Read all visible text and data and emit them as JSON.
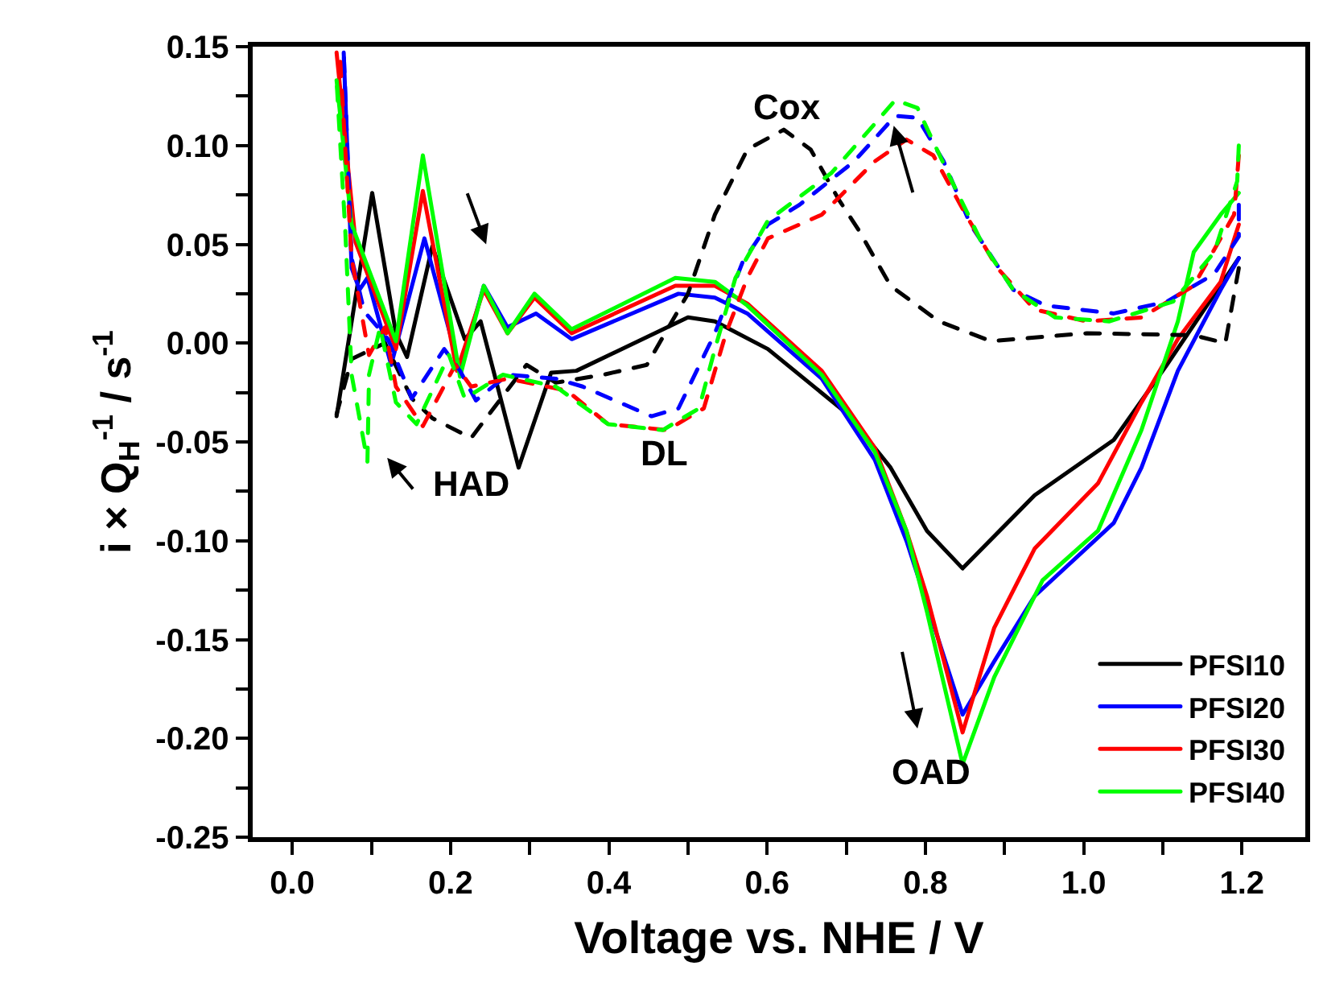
{
  "chart_data": {
    "type": "line",
    "xlabel": "Voltage vs. NHE / V",
    "ylabel": "i × Q$_{H}$$^{-1}$ / s$^{-1}$",
    "xlim": [
      -0.05,
      1.28
    ],
    "ylim": [
      -0.25,
      0.15
    ],
    "xticks": [
      {
        "value": 0.0,
        "label": "0.0"
      },
      {
        "value": 0.1,
        "label": null
      },
      {
        "value": 0.2,
        "label": "0.2"
      },
      {
        "value": 0.3,
        "label": null
      },
      {
        "value": 0.4,
        "label": "0.4"
      },
      {
        "value": 0.5,
        "label": null
      },
      {
        "value": 0.6,
        "label": "0.6"
      },
      {
        "value": 0.7,
        "label": null
      },
      {
        "value": 0.8,
        "label": "0.8"
      },
      {
        "value": 0.9,
        "label": null
      },
      {
        "value": 1.0,
        "label": "1.0"
      },
      {
        "value": 1.1,
        "label": null
      },
      {
        "value": 1.2,
        "label": "1.2"
      }
    ],
    "yticks": [
      {
        "value": 0.15,
        "label": "0.15"
      },
      {
        "value": 0.125,
        "label": null
      },
      {
        "value": 0.1,
        "label": "0.10"
      },
      {
        "value": 0.075,
        "label": null
      },
      {
        "value": 0.05,
        "label": "0.05"
      },
      {
        "value": 0.025,
        "label": null
      },
      {
        "value": 0.0,
        "label": "0.00"
      },
      {
        "value": -0.025,
        "label": null
      },
      {
        "value": -0.05,
        "label": "-0.05"
      },
      {
        "value": -0.075,
        "label": null
      },
      {
        "value": -0.1,
        "label": "-0.10"
      },
      {
        "value": -0.125,
        "label": null
      },
      {
        "value": -0.15,
        "label": "-0.15"
      },
      {
        "value": -0.175,
        "label": null
      },
      {
        "value": -0.2,
        "label": "-0.20"
      },
      {
        "value": -0.225,
        "label": null
      },
      {
        "value": -0.25,
        "label": "-0.25"
      }
    ],
    "legend": "bottom right",
    "marker": "none",
    "annotations": [
      "Cox",
      "DL",
      "HAD",
      "OAD"
    ],
    "series": [
      {
        "name": "PFSI10",
        "color": "#000000",
        "line_style": "solid",
        "x": [
          0.056,
          0.101,
          0.131,
          0.145,
          0.177,
          0.218,
          0.238,
          0.286,
          0.327,
          0.359,
          0.5,
          0.534,
          0.601,
          0.702,
          0.756,
          0.802,
          0.847,
          0.938,
          1.038,
          1.105,
          1.196
        ],
        "values": [
          -0.037,
          0.076,
          0.005,
          -0.007,
          0.049,
          0.002,
          0.011,
          -0.063,
          -0.015,
          -0.014,
          0.013,
          0.011,
          -0.003,
          -0.036,
          -0.063,
          -0.095,
          -0.114,
          -0.077,
          -0.049,
          -0.011,
          0.043
        ]
      },
      {
        "name": "PFSI20",
        "color": "#0000ff",
        "line_style": "solid",
        "x": [
          0.065,
          0.075,
          0.085,
          0.095,
          0.125,
          0.167,
          0.212,
          0.242,
          0.272,
          0.308,
          0.353,
          0.488,
          0.534,
          0.575,
          0.669,
          0.736,
          0.776,
          0.802,
          0.847,
          0.887,
          0.938,
          1.038,
          1.073,
          1.119,
          1.173,
          1.196
        ],
        "values": [
          0.147,
          0.038,
          0.027,
          0.033,
          -0.011,
          0.053,
          -0.014,
          0.029,
          0.008,
          0.015,
          0.002,
          0.025,
          0.023,
          0.015,
          -0.018,
          -0.059,
          -0.1,
          -0.132,
          -0.188,
          -0.161,
          -0.128,
          -0.091,
          -0.063,
          -0.014,
          0.027,
          0.043
        ]
      },
      {
        "name": "PFSI30",
        "color": "#ff0000",
        "line_style": "solid",
        "x": [
          0.056,
          0.08,
          0.131,
          0.165,
          0.208,
          0.242,
          0.272,
          0.306,
          0.353,
          0.484,
          0.534,
          0.575,
          0.669,
          0.736,
          0.776,
          0.802,
          0.847,
          0.887,
          0.938,
          1.018,
          1.073,
          1.119,
          1.173,
          1.196
        ],
        "values": [
          0.147,
          0.051,
          -0.003,
          0.077,
          -0.014,
          0.027,
          0.005,
          0.023,
          0.005,
          0.029,
          0.029,
          0.02,
          -0.014,
          -0.053,
          -0.095,
          -0.128,
          -0.197,
          -0.144,
          -0.104,
          -0.071,
          -0.03,
          0.002,
          0.031,
          0.06
        ]
      },
      {
        "name": "PFSI40",
        "color": "#00ff00",
        "line_style": "solid",
        "x": [
          0.056,
          0.075,
          0.131,
          0.165,
          0.212,
          0.242,
          0.272,
          0.306,
          0.353,
          0.484,
          0.534,
          0.575,
          0.669,
          0.736,
          0.776,
          0.802,
          0.847,
          0.887,
          0.948,
          1.018,
          1.073,
          1.119,
          1.139,
          1.173,
          1.196
        ],
        "values": [
          0.133,
          0.06,
          0.001,
          0.095,
          -0.017,
          0.029,
          0.005,
          0.025,
          0.007,
          0.033,
          0.031,
          0.019,
          -0.016,
          -0.055,
          -0.095,
          -0.136,
          -0.213,
          -0.169,
          -0.12,
          -0.095,
          -0.044,
          0.011,
          0.046,
          0.065,
          0.076
        ]
      },
      {
        "color": "#000000",
        "line_style": "dashed",
        "x": [
          1.196,
          1.179,
          1.139,
          1.004,
          0.883,
          0.817,
          0.756,
          0.716,
          0.69,
          0.655,
          0.621,
          0.575,
          0.534,
          0.5,
          0.448,
          0.393,
          0.333,
          0.296,
          0.226,
          0.177,
          0.151,
          0.117,
          0.075,
          0.056
        ],
        "values": [
          0.038,
          0.0,
          0.004,
          0.005,
          0.001,
          0.011,
          0.029,
          0.057,
          0.073,
          0.098,
          0.108,
          0.098,
          0.065,
          0.025,
          -0.011,
          -0.016,
          -0.02,
          -0.011,
          -0.048,
          -0.038,
          -0.028,
          0.0,
          -0.008,
          -0.036
        ]
      },
      {
        "color": "#0000ff",
        "line_style": "dashed",
        "x": [
          1.196,
          1.196,
          1.165,
          1.105,
          1.038,
          0.952,
          0.911,
          0.857,
          0.823,
          0.79,
          0.762,
          0.71,
          0.641,
          0.601,
          0.569,
          0.534,
          0.488,
          0.454,
          0.367,
          0.333,
          0.272,
          0.232,
          0.212,
          0.192,
          0.151,
          0.121,
          0.091,
          0.075,
          0.065
        ],
        "values": [
          0.07,
          0.054,
          0.035,
          0.021,
          0.015,
          0.019,
          0.027,
          0.06,
          0.092,
          0.114,
          0.115,
          0.092,
          0.07,
          0.06,
          0.041,
          0.005,
          -0.033,
          -0.037,
          -0.022,
          -0.018,
          -0.016,
          -0.029,
          -0.014,
          -0.003,
          -0.028,
          0.002,
          0.016,
          0.043,
          0.147
        ]
      },
      {
        "color": "#ff0000",
        "line_style": "dashed",
        "x": [
          1.196,
          1.19,
          1.139,
          1.073,
          1.004,
          0.938,
          0.891,
          0.851,
          0.81,
          0.776,
          0.736,
          0.669,
          0.601,
          0.575,
          0.548,
          0.52,
          0.474,
          0.399,
          0.347,
          0.272,
          0.226,
          0.206,
          0.165,
          0.131,
          0.117,
          0.097,
          0.075,
          0.06
        ],
        "values": [
          0.095,
          0.065,
          0.029,
          0.013,
          0.011,
          0.017,
          0.038,
          0.065,
          0.095,
          0.103,
          0.092,
          0.065,
          0.053,
          0.033,
          0.005,
          -0.033,
          -0.044,
          -0.041,
          -0.024,
          -0.018,
          -0.022,
          -0.011,
          -0.042,
          -0.022,
          0.008,
          -0.006,
          0.043,
          0.147
        ]
      },
      {
        "color": "#00ff00",
        "line_style": "dashed",
        "x": [
          1.196,
          1.194,
          1.165,
          1.113,
          1.032,
          0.964,
          0.911,
          0.871,
          0.831,
          0.79,
          0.762,
          0.736,
          0.681,
          0.601,
          0.56,
          0.534,
          0.514,
          0.468,
          0.399,
          0.333,
          0.266,
          0.218,
          0.198,
          0.157,
          0.131,
          0.111,
          0.097,
          0.095,
          0.075,
          0.067,
          0.056
        ],
        "values": [
          0.1,
          0.082,
          0.046,
          0.021,
          0.011,
          0.013,
          0.027,
          0.051,
          0.084,
          0.119,
          0.123,
          0.111,
          0.086,
          0.062,
          0.033,
          -0.003,
          -0.033,
          -0.044,
          -0.041,
          -0.022,
          -0.016,
          -0.028,
          -0.006,
          -0.041,
          -0.03,
          0.008,
          -0.016,
          -0.06,
          -0.016,
          0.057,
          0.133
        ]
      }
    ]
  }
}
